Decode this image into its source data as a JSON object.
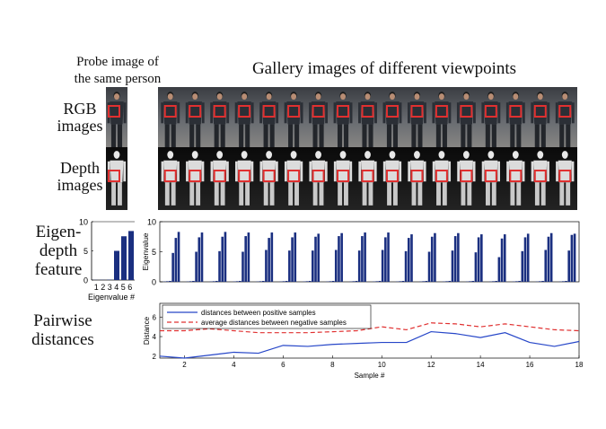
{
  "labels": {
    "probe_title_line1": "Probe image of",
    "probe_title_line2": "the same person",
    "gallery_title": "Gallery images of different viewpoints",
    "rgb_line1": "RGB",
    "rgb_line2": "images",
    "depth_line1": "Depth",
    "depth_line2": "images",
    "eigen_line1": "Eigen-",
    "eigen_line2": "depth",
    "eigen_line3": "feature",
    "pair_line1": "Pairwise",
    "pair_line2": "distances"
  },
  "colors": {
    "bar": "#1a2f80",
    "pos_line": "#2646c8",
    "neg_line": "#e03030",
    "box": "#e03030"
  },
  "chart_data": [
    {
      "type": "bar",
      "id": "probe-eigen",
      "xlabel": "Eigenvalue #",
      "ylabel": "",
      "ylim": [
        0,
        10
      ],
      "yticks": [
        0,
        5,
        10
      ],
      "categories": [
        "1",
        "2",
        "3",
        "4",
        "5",
        "6"
      ],
      "tick_text": "1 2 3 4 5 6",
      "values": [
        0.02,
        0.03,
        0.05,
        5.0,
        7.5,
        8.4
      ]
    },
    {
      "type": "bar",
      "id": "gallery-eigen",
      "xlabel": "",
      "ylabel": "Eigenvalue",
      "ylim": [
        0,
        10
      ],
      "yticks": [
        0,
        5,
        10
      ],
      "groups": [
        [
          0.05,
          0.1,
          0.15,
          4.8,
          7.3,
          8.3
        ],
        [
          0.05,
          0.1,
          0.15,
          5.0,
          7.4,
          8.2
        ],
        [
          0.05,
          0.1,
          0.15,
          5.1,
          7.5,
          8.3
        ],
        [
          0.05,
          0.1,
          0.15,
          5.0,
          7.6,
          8.2
        ],
        [
          0.05,
          0.1,
          0.15,
          5.3,
          7.3,
          8.2
        ],
        [
          0.05,
          0.1,
          0.15,
          5.2,
          7.4,
          8.2
        ],
        [
          0.05,
          0.1,
          0.15,
          5.2,
          7.5,
          8.0
        ],
        [
          0.05,
          0.1,
          0.15,
          5.3,
          7.6,
          8.1
        ],
        [
          0.05,
          0.1,
          0.15,
          5.2,
          7.6,
          8.2
        ],
        [
          0.05,
          0.1,
          0.15,
          5.3,
          7.4,
          8.2
        ],
        [
          0.05,
          0.1,
          0.15,
          5.1,
          7.3,
          7.9
        ],
        [
          0.05,
          0.1,
          0.15,
          5.0,
          7.5,
          8.1
        ],
        [
          0.05,
          0.1,
          0.15,
          5.2,
          7.6,
          8.1
        ],
        [
          0.05,
          0.1,
          0.15,
          4.9,
          7.4,
          7.9
        ],
        [
          0.05,
          0.1,
          0.15,
          4.1,
          7.2,
          7.9
        ],
        [
          0.05,
          0.1,
          0.15,
          5.1,
          7.4,
          8.0
        ],
        [
          0.05,
          0.1,
          0.15,
          5.3,
          7.5,
          8.1
        ],
        [
          0.05,
          0.1,
          0.15,
          5.2,
          7.8,
          8.0
        ]
      ]
    },
    {
      "type": "line",
      "id": "pairwise-distances",
      "xlabel": "Sample #",
      "ylabel": "Distance",
      "xlim": [
        1,
        18
      ],
      "ylim": [
        1.8,
        7.4
      ],
      "xticks": [
        2,
        4,
        6,
        8,
        10,
        12,
        14,
        16,
        18
      ],
      "yticks": [
        2,
        4,
        6
      ],
      "x": [
        1,
        2,
        3,
        4,
        5,
        6,
        7,
        8,
        9,
        10,
        11,
        12,
        13,
        14,
        15,
        16,
        17,
        18
      ],
      "series": [
        {
          "name": "distances between positive samples",
          "style": "solid",
          "values": [
            2.0,
            1.8,
            2.1,
            2.4,
            2.3,
            3.1,
            3.0,
            3.2,
            3.3,
            3.4,
            3.4,
            4.5,
            4.3,
            3.9,
            4.4,
            3.4,
            3.0,
            3.5
          ]
        },
        {
          "name": "average distances between negative samples",
          "style": "dashed",
          "values": [
            4.6,
            4.6,
            4.8,
            4.6,
            4.4,
            4.4,
            4.4,
            4.5,
            4.6,
            5.0,
            4.7,
            5.4,
            5.3,
            5.0,
            5.3,
            5.0,
            4.7,
            4.6
          ]
        }
      ]
    }
  ]
}
